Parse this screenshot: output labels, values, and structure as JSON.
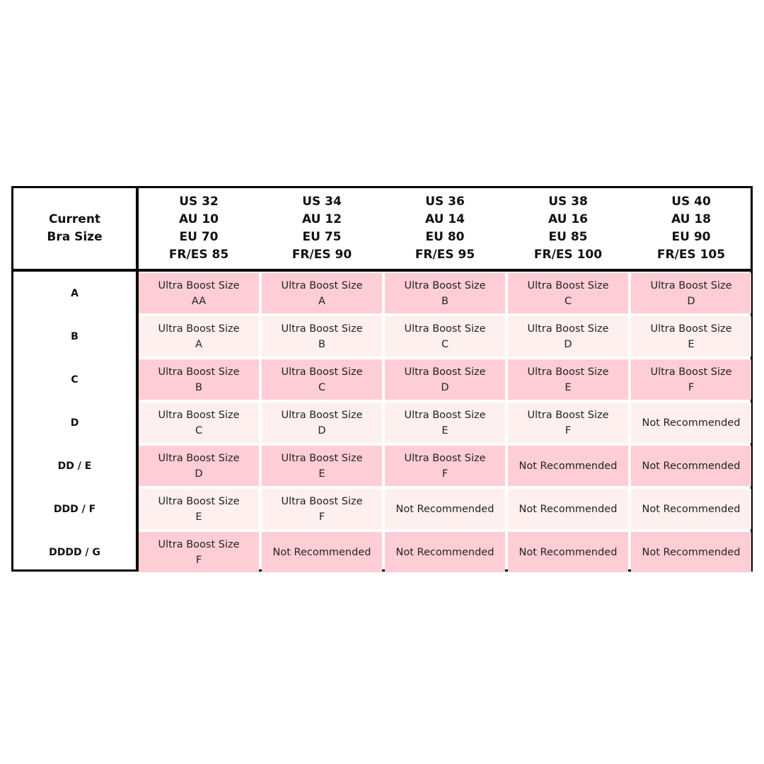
{
  "corner_header": [
    "Current",
    "Bra Size"
  ],
  "columns": [
    [
      "US 32",
      "AU 10",
      "EU 70",
      "FR/ES 85"
    ],
    [
      "US 34",
      "AU 12",
      "EU 75",
      "FR/ES 90"
    ],
    [
      "US 36",
      "AU 14",
      "EU 80",
      "FR/ES 95"
    ],
    [
      "US 38",
      "AU 16",
      "EU 85",
      "FR/ES 100"
    ],
    [
      "US 40",
      "AU 18",
      "EU 90",
      "FR/ES 105"
    ]
  ],
  "rows": [
    {
      "label": "A",
      "cells": [
        [
          "Ultra Boost Size",
          "AA"
        ],
        [
          "Ultra Boost Size",
          "A"
        ],
        [
          "Ultra Boost Size",
          "B"
        ],
        [
          "Ultra Boost Size",
          "C"
        ],
        [
          "Ultra Boost Size",
          "D"
        ]
      ]
    },
    {
      "label": "B",
      "cells": [
        [
          "Ultra Boost Size",
          "A"
        ],
        [
          "Ultra Boost Size",
          "B"
        ],
        [
          "Ultra Boost Size",
          "C"
        ],
        [
          "Ultra Boost Size",
          "D"
        ],
        [
          "Ultra Boost Size",
          "E"
        ]
      ]
    },
    {
      "label": "C",
      "cells": [
        [
          "Ultra Boost Size",
          "B"
        ],
        [
          "Ultra Boost Size",
          "C"
        ],
        [
          "Ultra Boost Size",
          "D"
        ],
        [
          "Ultra Boost Size",
          "E"
        ],
        [
          "Ultra Boost Size",
          "F"
        ]
      ]
    },
    {
      "label": "D",
      "cells": [
        [
          "Ultra Boost Size",
          "C"
        ],
        [
          "Ultra Boost Size",
          "D"
        ],
        [
          "Ultra Boost Size",
          "E"
        ],
        [
          "Ultra Boost Size",
          "F"
        ],
        [
          "Not Recommended"
        ]
      ]
    },
    {
      "label": "DD / E",
      "cells": [
        [
          "Ultra Boost Size",
          "D"
        ],
        [
          "Ultra Boost Size",
          "E"
        ],
        [
          "Ultra Boost Size",
          "F"
        ],
        [
          "Not Recommended"
        ],
        [
          "Not Recommended"
        ]
      ]
    },
    {
      "label": "DDD / F",
      "cells": [
        [
          "Ultra Boost Size",
          "E"
        ],
        [
          "Ultra Boost Size",
          "F"
        ],
        [
          "Not Recommended"
        ],
        [
          "Not Recommended"
        ],
        [
          "Not Recommended"
        ]
      ]
    },
    {
      "label": "DDDD / G",
      "cells": [
        [
          "Ultra Boost Size",
          "F"
        ],
        [
          "Not Recommended"
        ],
        [
          "Not Recommended"
        ],
        [
          "Not Recommended"
        ],
        [
          "Not Recommended"
        ]
      ]
    }
  ],
  "colors": {
    "row_dark": "#fecdd5",
    "row_light": "#fdf0ef",
    "border": "#000000"
  }
}
